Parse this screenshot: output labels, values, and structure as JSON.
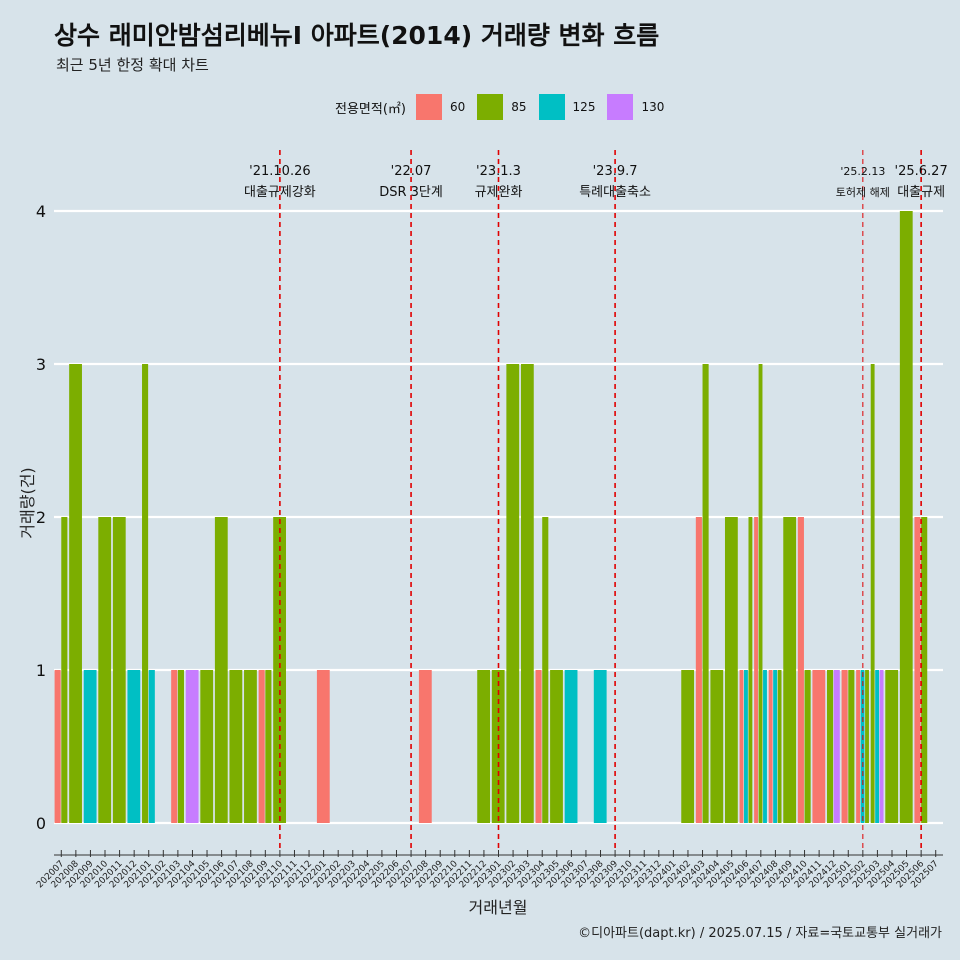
{
  "title": "상수 래미안밤섬리베뉴I 아파트(2014) 거래량 변화 흐름",
  "subtitle": "최근 5년 한정 확대 차트",
  "caption": "©디아파트(dapt.kr) / 2025.07.15 / 자료=국토교통부 실거래가",
  "legend": {
    "title": "전용면적(㎡)",
    "items": [
      {
        "label": "60",
        "color": "#f8766d"
      },
      {
        "label": "85",
        "color": "#7cae00"
      },
      {
        "label": "125",
        "color": "#00bfc4"
      },
      {
        "label": "130",
        "color": "#c77cff"
      }
    ]
  },
  "chart_data": {
    "type": "bar",
    "xlabel": "거래년월",
    "ylabel": "거래량(건)",
    "ylim": [
      0,
      4
    ],
    "yticks": [
      0,
      1,
      2,
      3,
      4
    ],
    "grid": true,
    "legend_position": "top",
    "categories": [
      "202007",
      "202008",
      "202009",
      "202010",
      "202011",
      "202012",
      "202101",
      "202102",
      "202103",
      "202104",
      "202105",
      "202106",
      "202107",
      "202108",
      "202109",
      "202110",
      "202111",
      "202112",
      "202201",
      "202202",
      "202203",
      "202204",
      "202205",
      "202206",
      "202207",
      "202208",
      "202209",
      "202210",
      "202211",
      "202212",
      "202301",
      "202302",
      "202303",
      "202304",
      "202305",
      "202306",
      "202307",
      "202308",
      "202309",
      "202310",
      "202311",
      "202312",
      "202401",
      "202402",
      "202403",
      "202404",
      "202405",
      "202406",
      "202407",
      "202408",
      "202409",
      "202410",
      "202411",
      "202412",
      "202501",
      "202502",
      "202503",
      "202504",
      "202505",
      "202506",
      "202507"
    ],
    "bars": [
      {
        "month": "202007",
        "parts": [
          {
            "area": "60",
            "value": 1
          },
          {
            "area": "85",
            "value": 2
          }
        ]
      },
      {
        "month": "202008",
        "parts": [
          {
            "area": "85",
            "value": 3
          }
        ]
      },
      {
        "month": "202009",
        "parts": [
          {
            "area": "125",
            "value": 1
          }
        ]
      },
      {
        "month": "202010",
        "parts": [
          {
            "area": "85",
            "value": 2
          }
        ]
      },
      {
        "month": "202011",
        "parts": [
          {
            "area": "85",
            "value": 2
          }
        ]
      },
      {
        "month": "202012",
        "parts": [
          {
            "area": "125",
            "value": 1
          }
        ]
      },
      {
        "month": "202101",
        "parts": [
          {
            "area": "85",
            "value": 3
          },
          {
            "area": "125",
            "value": 1
          }
        ]
      },
      {
        "month": "202103",
        "parts": [
          {
            "area": "60",
            "value": 1
          },
          {
            "area": "85",
            "value": 1
          }
        ]
      },
      {
        "month": "202104",
        "parts": [
          {
            "area": "130",
            "value": 1
          }
        ]
      },
      {
        "month": "202105",
        "parts": [
          {
            "area": "85",
            "value": 1
          }
        ]
      },
      {
        "month": "202106",
        "parts": [
          {
            "area": "85",
            "value": 2
          }
        ]
      },
      {
        "month": "202107",
        "parts": [
          {
            "area": "85",
            "value": 1
          }
        ]
      },
      {
        "month": "202108",
        "parts": [
          {
            "area": "85",
            "value": 1
          }
        ]
      },
      {
        "month": "202109",
        "parts": [
          {
            "area": "60",
            "value": 1
          },
          {
            "area": "85",
            "value": 1
          }
        ]
      },
      {
        "month": "202110",
        "parts": [
          {
            "area": "85",
            "value": 2
          }
        ]
      },
      {
        "month": "202201",
        "parts": [
          {
            "area": "60",
            "value": 1
          }
        ]
      },
      {
        "month": "202208",
        "parts": [
          {
            "area": "60",
            "value": 1
          }
        ]
      },
      {
        "month": "202212",
        "parts": [
          {
            "area": "85",
            "value": 1
          }
        ]
      },
      {
        "month": "202301",
        "parts": [
          {
            "area": "85",
            "value": 1
          }
        ]
      },
      {
        "month": "202302",
        "parts": [
          {
            "area": "85",
            "value": 3
          }
        ]
      },
      {
        "month": "202303",
        "parts": [
          {
            "area": "85",
            "value": 3
          }
        ]
      },
      {
        "month": "202304",
        "parts": [
          {
            "area": "60",
            "value": 1
          },
          {
            "area": "85",
            "value": 2
          }
        ]
      },
      {
        "month": "202305",
        "parts": [
          {
            "area": "85",
            "value": 1
          }
        ]
      },
      {
        "month": "202306",
        "parts": [
          {
            "area": "125",
            "value": 1
          }
        ]
      },
      {
        "month": "202308",
        "parts": [
          {
            "area": "125",
            "value": 1
          }
        ]
      },
      {
        "month": "202402",
        "parts": [
          {
            "area": "85",
            "value": 1
          }
        ]
      },
      {
        "month": "202403",
        "parts": [
          {
            "area": "60",
            "value": 2
          },
          {
            "area": "85",
            "value": 3
          }
        ]
      },
      {
        "month": "202404",
        "parts": [
          {
            "area": "85",
            "value": 1
          }
        ]
      },
      {
        "month": "202405",
        "parts": [
          {
            "area": "85",
            "value": 2
          }
        ]
      },
      {
        "month": "202406",
        "parts": [
          {
            "area": "60",
            "value": 1
          },
          {
            "area": "125",
            "value": 1
          },
          {
            "area": "85",
            "value": 2
          }
        ]
      },
      {
        "month": "202407",
        "parts": [
          {
            "area": "60",
            "value": 2
          },
          {
            "area": "85",
            "value": 3
          },
          {
            "area": "125",
            "value": 1
          }
        ]
      },
      {
        "month": "202408",
        "parts": [
          {
            "area": "60",
            "value": 1
          },
          {
            "area": "125",
            "value": 1
          },
          {
            "area": "85",
            "value": 1
          }
        ]
      },
      {
        "month": "202409",
        "parts": [
          {
            "area": "85",
            "value": 2
          }
        ]
      },
      {
        "month": "202410",
        "parts": [
          {
            "area": "60",
            "value": 2
          },
          {
            "area": "85",
            "value": 1
          }
        ]
      },
      {
        "month": "202411",
        "parts": [
          {
            "area": "60",
            "value": 1
          }
        ]
      },
      {
        "month": "202412",
        "parts": [
          {
            "area": "85",
            "value": 1
          },
          {
            "area": "130",
            "value": 1
          }
        ]
      },
      {
        "month": "202501",
        "parts": [
          {
            "area": "60",
            "value": 1
          },
          {
            "area": "85",
            "value": 1
          }
        ]
      },
      {
        "month": "202502",
        "parts": [
          {
            "area": "60",
            "value": 1
          },
          {
            "area": "125",
            "value": 1
          },
          {
            "area": "85",
            "value": 1
          }
        ]
      },
      {
        "month": "202503",
        "parts": [
          {
            "area": "85",
            "value": 3
          },
          {
            "area": "125",
            "value": 1
          },
          {
            "area": "130",
            "value": 1
          }
        ]
      },
      {
        "month": "202504",
        "parts": [
          {
            "area": "85",
            "value": 1
          }
        ]
      },
      {
        "month": "202505",
        "parts": [
          {
            "area": "85",
            "value": 4
          }
        ]
      },
      {
        "month": "202506",
        "parts": [
          {
            "area": "60",
            "value": 2
          },
          {
            "area": "85",
            "value": 2
          }
        ]
      }
    ],
    "events": [
      {
        "month": "202110",
        "date": "'21.10.26",
        "label": "대출규제강화"
      },
      {
        "month": "202207",
        "date": "'22.07",
        "label": "DSR 3단계"
      },
      {
        "month": "202301",
        "date": "'23.1.3",
        "label": "규제완화"
      },
      {
        "month": "202309",
        "date": "'23.9.7",
        "label": "특례대출축소"
      },
      {
        "month": "202502",
        "date": "'25.2.13",
        "label": "토허제 해제"
      },
      {
        "month": "202506",
        "date": "'25.6.27",
        "label": "대출규제"
      }
    ]
  }
}
